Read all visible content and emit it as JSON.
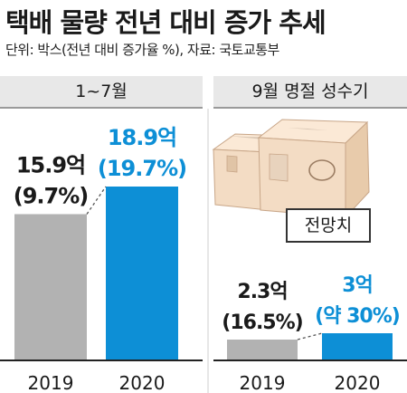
{
  "header": {
    "title": "택배 물량 전년 대비 증가 추세",
    "subtitle": "단위: 박스(전년 대비 증가율 %), 자료: 국토교통부"
  },
  "callout": {
    "label": "전망치"
  },
  "colors": {
    "prior_year": "#b2b2b2",
    "current_year": "#0d8fd6",
    "panel_bg": "#e8e8e8",
    "box": "#f3dcc4"
  },
  "chart_data": [
    {
      "type": "bar",
      "title": "1~7월",
      "categories": [
        "2019",
        "2020"
      ],
      "values": [
        15.9,
        18.9
      ],
      "value_labels": [
        "15.9억",
        "18.9억"
      ],
      "growth_labels": [
        "(9.7%)",
        "(19.7%)"
      ],
      "xlabel": "",
      "ylabel": ""
    },
    {
      "type": "bar",
      "title": "9월 명절 성수기",
      "categories": [
        "2019",
        "2020"
      ],
      "values": [
        2.3,
        3
      ],
      "value_labels": [
        "2.3억",
        "3억"
      ],
      "growth_labels": [
        "(16.5%)",
        "(약 30%)"
      ],
      "xlabel": "",
      "ylabel": ""
    }
  ]
}
